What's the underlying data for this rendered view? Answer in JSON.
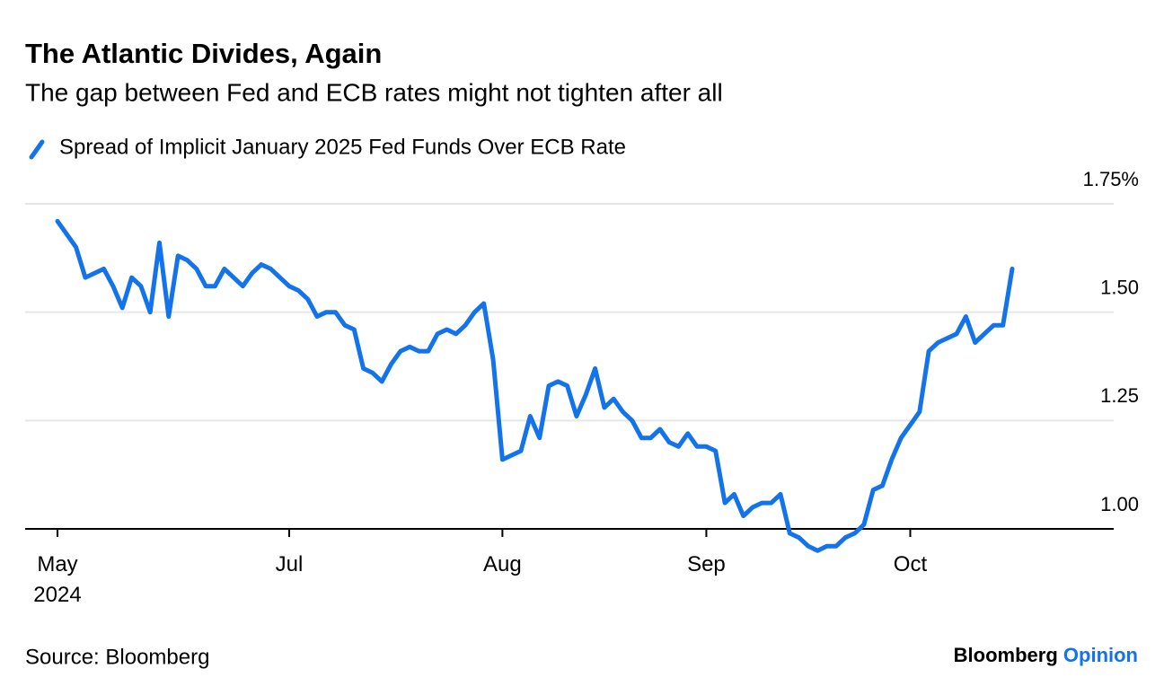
{
  "chart_data": {
    "type": "line",
    "title": "The Atlantic Divides, Again",
    "subtitle": "The gap between Fed and ECB rates might not tighten after all",
    "source": "Source: Bloomberg",
    "brand": {
      "name": "Bloomberg",
      "section": "Opinion"
    },
    "categories": [
      "May\n2024",
      null,
      null,
      null,
      null,
      null,
      null,
      null,
      null,
      null,
      null,
      null,
      null,
      null,
      null,
      null,
      null,
      null,
      null,
      null,
      null,
      null,
      null,
      null,
      null,
      "Jul",
      null,
      null,
      null,
      null,
      null,
      null,
      null,
      null,
      null,
      null,
      null,
      null,
      null,
      null,
      null,
      null,
      null,
      null,
      null,
      null,
      null,
      null,
      "Aug",
      null,
      null,
      null,
      null,
      null,
      null,
      null,
      null,
      null,
      null,
      null,
      null,
      null,
      null,
      null,
      null,
      null,
      null,
      null,
      null,
      null,
      "Sep",
      null,
      null,
      null,
      null,
      null,
      null,
      null,
      null,
      null,
      null,
      null,
      null,
      null,
      null,
      null,
      null,
      null,
      null,
      null,
      null,
      null,
      "Oct",
      null,
      null,
      null,
      null,
      null,
      null,
      null,
      null,
      null,
      null,
      null
    ],
    "series": [
      {
        "name": "Spread of Implicit January 2025 Fed Funds Over ECB Rate",
        "color": "#1273eb",
        "values": [
          1.71,
          1.68,
          1.65,
          1.58,
          1.59,
          1.6,
          1.56,
          1.51,
          1.58,
          1.56,
          1.5,
          1.66,
          1.49,
          1.63,
          1.62,
          1.6,
          1.56,
          1.56,
          1.6,
          1.58,
          1.56,
          1.59,
          1.61,
          1.6,
          1.58,
          1.56,
          1.55,
          1.53,
          1.49,
          1.5,
          1.5,
          1.47,
          1.46,
          1.37,
          1.36,
          1.34,
          1.38,
          1.41,
          1.42,
          1.41,
          1.41,
          1.45,
          1.46,
          1.45,
          1.47,
          1.5,
          1.52,
          1.39,
          1.16,
          1.17,
          1.18,
          1.26,
          1.21,
          1.33,
          1.34,
          1.33,
          1.26,
          1.31,
          1.37,
          1.28,
          1.3,
          1.27,
          1.25,
          1.21,
          1.21,
          1.23,
          1.2,
          1.19,
          1.22,
          1.19,
          1.19,
          1.18,
          1.06,
          1.08,
          1.03,
          1.05,
          1.06,
          1.06,
          1.08,
          0.99,
          0.98,
          0.96,
          0.95,
          0.96,
          0.96,
          0.98,
          0.99,
          1.01,
          1.09,
          1.1,
          1.16,
          1.21,
          1.24,
          1.27,
          1.41,
          1.43,
          1.44,
          1.45,
          1.49,
          1.43,
          1.45,
          1.47,
          1.47,
          1.6
        ]
      }
    ],
    "ylim": [
      0.94,
      1.75
    ],
    "yticks": [
      {
        "value": 1.0,
        "label": "1.00"
      },
      {
        "value": 1.25,
        "label": "1.25"
      },
      {
        "value": 1.5,
        "label": "1.50"
      },
      {
        "value": 1.75,
        "label": "1.75%"
      }
    ],
    "grid": true
  }
}
